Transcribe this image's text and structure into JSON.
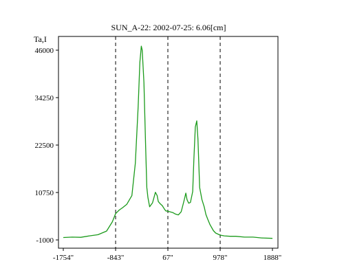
{
  "chart_data": {
    "type": "line",
    "title": "SUN_A-22: 2002-07-25: 6.06[cm]",
    "ylabel": "Ta,I",
    "xlabel": "",
    "xlim": [
      -1754,
      1888
    ],
    "ylim": [
      -1000,
      47500
    ],
    "x_ticks": [
      {
        "value": -1754,
        "label": "-1754\""
      },
      {
        "value": -843,
        "label": "-843\""
      },
      {
        "value": 67,
        "label": "67\""
      },
      {
        "value": 978,
        "label": "978\""
      },
      {
        "value": 1888,
        "label": "1888\""
      }
    ],
    "y_ticks": [
      {
        "value": -1000,
        "label": "-1000"
      },
      {
        "value": 10750,
        "label": "10750"
      },
      {
        "value": 22500,
        "label": "22500"
      },
      {
        "value": 34250,
        "label": "34250"
      },
      {
        "value": 46000,
        "label": "46000"
      }
    ],
    "vertical_dashed_lines": [
      -843,
      67,
      978
    ],
    "grid": false,
    "series": [
      {
        "color": "#1a9a1a",
        "x": [
          -1754,
          -1600,
          -1450,
          -1300,
          -1150,
          -1000,
          -900,
          -843,
          -780,
          -720,
          -650,
          -560,
          -500,
          -450,
          -420,
          -395,
          -380,
          -350,
          -320,
          -300,
          -280,
          -250,
          -200,
          -150,
          -120,
          -100,
          -70,
          -30,
          0,
          30,
          67,
          150,
          200,
          250,
          300,
          350,
          380,
          400,
          430,
          460,
          500,
          520,
          545,
          570,
          590,
          620,
          660,
          700,
          730,
          760,
          800,
          860,
          900,
          978,
          1050,
          1150,
          1250,
          1400,
          1550,
          1700,
          1888
        ],
        "y": [
          -400,
          -300,
          -350,
          0,
          300,
          1200,
          3500,
          5500,
          6400,
          7000,
          7800,
          10000,
          18000,
          32000,
          43000,
          47000,
          46000,
          38000,
          22000,
          12000,
          9500,
          7200,
          8200,
          10800,
          10000,
          8500,
          8000,
          7500,
          6800,
          6200,
          6100,
          5800,
          5400,
          5200,
          6000,
          8800,
          10600,
          9000,
          8100,
          8300,
          11000,
          19000,
          27000,
          28500,
          24000,
          12000,
          9000,
          7200,
          5300,
          4200,
          2800,
          1300,
          700,
          200,
          0,
          -100,
          -100,
          -300,
          -300,
          -500,
          -600
        ]
      }
    ]
  }
}
